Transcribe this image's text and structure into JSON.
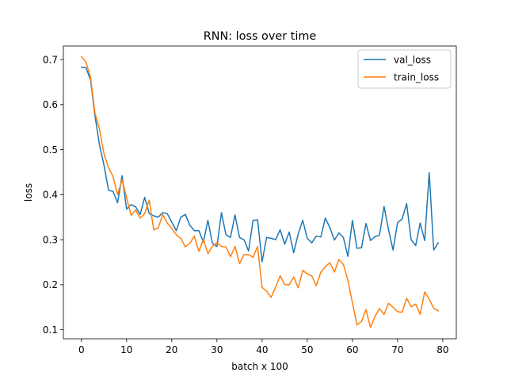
{
  "chart_data": {
    "type": "line",
    "title": "RNN: loss over time",
    "xlabel": "batch x 100",
    "ylabel": "loss",
    "xlim": [
      -4,
      83
    ],
    "ylim": [
      0.08,
      0.73
    ],
    "xticks": [
      0,
      10,
      20,
      30,
      40,
      50,
      60,
      70,
      80
    ],
    "yticks": [
      0.1,
      0.2,
      0.3,
      0.4,
      0.5,
      0.6,
      0.7
    ],
    "grid": false,
    "legend_position": "top-right",
    "x": [
      0,
      1,
      2,
      3,
      4,
      5,
      6,
      7,
      8,
      9,
      10,
      11,
      12,
      13,
      14,
      15,
      16,
      17,
      18,
      19,
      20,
      21,
      22,
      23,
      24,
      25,
      26,
      27,
      28,
      29,
      30,
      31,
      32,
      33,
      34,
      35,
      36,
      37,
      38,
      39,
      40,
      41,
      42,
      43,
      44,
      45,
      46,
      47,
      48,
      49,
      50,
      51,
      52,
      53,
      54,
      55,
      56,
      57,
      58,
      59,
      60,
      61,
      62,
      63,
      64,
      65,
      66,
      67,
      68,
      69,
      70,
      71,
      72,
      73,
      74,
      75,
      76,
      77,
      78,
      79
    ],
    "series": [
      {
        "name": "val_loss",
        "color": "#1f77b4",
        "values": [
          0.683,
          0.682,
          0.655,
          0.575,
          0.51,
          0.465,
          0.41,
          0.407,
          0.382,
          0.442,
          0.368,
          0.378,
          0.373,
          0.356,
          0.394,
          0.358,
          0.353,
          0.35,
          0.36,
          0.358,
          0.339,
          0.32,
          0.35,
          0.356,
          0.332,
          0.32,
          0.32,
          0.295,
          0.343,
          0.292,
          0.285,
          0.36,
          0.311,
          0.305,
          0.355,
          0.305,
          0.3,
          0.275,
          0.343,
          0.344,
          0.251,
          0.305,
          0.303,
          0.3,
          0.322,
          0.29,
          0.317,
          0.271,
          0.313,
          0.343,
          0.303,
          0.293,
          0.308,
          0.306,
          0.348,
          0.327,
          0.299,
          0.315,
          0.305,
          0.263,
          0.343,
          0.281,
          0.282,
          0.336,
          0.298,
          0.307,
          0.31,
          0.374,
          0.322,
          0.277,
          0.338,
          0.346,
          0.38,
          0.3,
          0.287,
          0.337,
          0.298,
          0.449,
          0.277,
          0.293
        ]
      },
      {
        "name": "train_loss",
        "color": "#ff7f0e",
        "values": [
          0.706,
          0.695,
          0.661,
          0.581,
          0.545,
          0.49,
          0.46,
          0.44,
          0.4,
          0.433,
          0.393,
          0.354,
          0.366,
          0.348,
          0.358,
          0.388,
          0.322,
          0.326,
          0.356,
          0.337,
          0.325,
          0.311,
          0.303,
          0.284,
          0.292,
          0.308,
          0.274,
          0.301,
          0.269,
          0.285,
          0.294,
          0.285,
          0.284,
          0.262,
          0.285,
          0.247,
          0.267,
          0.267,
          0.261,
          0.285,
          0.194,
          0.186,
          0.172,
          0.195,
          0.22,
          0.2,
          0.2,
          0.217,
          0.193,
          0.232,
          0.224,
          0.22,
          0.198,
          0.228,
          0.24,
          0.249,
          0.228,
          0.256,
          0.245,
          0.21,
          0.16,
          0.111,
          0.118,
          0.145,
          0.105,
          0.13,
          0.147,
          0.134,
          0.159,
          0.15,
          0.14,
          0.139,
          0.17,
          0.151,
          0.157,
          0.134,
          0.184,
          0.168,
          0.148,
          0.142
        ]
      }
    ]
  }
}
